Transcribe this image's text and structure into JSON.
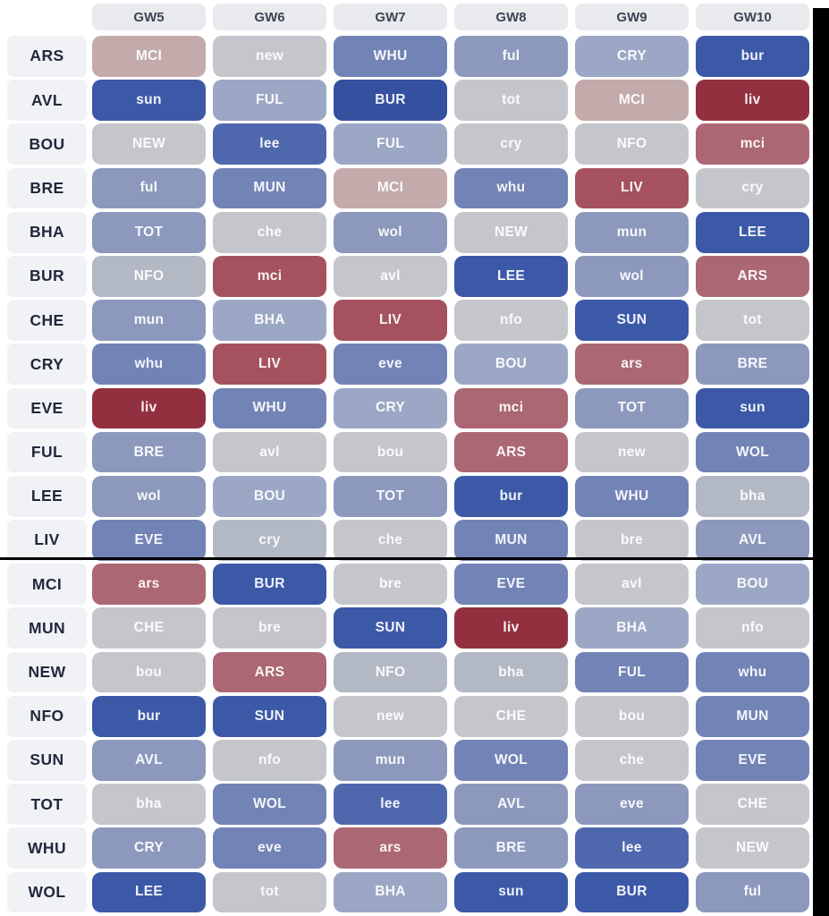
{
  "header": {
    "gameweeks": [
      "GW5",
      "GW6",
      "GW7",
      "GW8",
      "GW9",
      "GW10"
    ]
  },
  "palette": {
    "d1": "#34509e",
    "d2": "#3c59a8",
    "d3": "#4f68ad",
    "d4": "#7283b6",
    "d5": "#8c99bd",
    "d6": "#9ba7c4",
    "d7": "#b3b8c5",
    "d8": "#c4c6cb",
    "d9": "#c3aaab",
    "d10": "#ab6773",
    "d11": "#a5525e",
    "d12": "#93303f"
  },
  "rows": [
    {
      "team": "ARS",
      "fixtures": [
        {
          "opponent": "MCI",
          "level": "d9"
        },
        {
          "opponent": "new",
          "level": "d8"
        },
        {
          "opponent": "WHU",
          "level": "d4"
        },
        {
          "opponent": "ful",
          "level": "d5"
        },
        {
          "opponent": "CRY",
          "level": "d6"
        },
        {
          "opponent": "bur",
          "level": "d2"
        }
      ]
    },
    {
      "team": "AVL",
      "fixtures": [
        {
          "opponent": "sun",
          "level": "d2"
        },
        {
          "opponent": "FUL",
          "level": "d6"
        },
        {
          "opponent": "BUR",
          "level": "d1"
        },
        {
          "opponent": "tot",
          "level": "d8"
        },
        {
          "opponent": "MCI",
          "level": "d9"
        },
        {
          "opponent": "liv",
          "level": "d12"
        }
      ]
    },
    {
      "team": "BOU",
      "fixtures": [
        {
          "opponent": "NEW",
          "level": "d8"
        },
        {
          "opponent": "lee",
          "level": "d3"
        },
        {
          "opponent": "FUL",
          "level": "d6"
        },
        {
          "opponent": "cry",
          "level": "d8"
        },
        {
          "opponent": "NFO",
          "level": "d8"
        },
        {
          "opponent": "mci",
          "level": "d10"
        }
      ]
    },
    {
      "team": "BRE",
      "fixtures": [
        {
          "opponent": "ful",
          "level": "d5"
        },
        {
          "opponent": "MUN",
          "level": "d4"
        },
        {
          "opponent": "MCI",
          "level": "d9"
        },
        {
          "opponent": "whu",
          "level": "d4"
        },
        {
          "opponent": "LIV",
          "level": "d11"
        },
        {
          "opponent": "cry",
          "level": "d8"
        }
      ]
    },
    {
      "team": "BHA",
      "fixtures": [
        {
          "opponent": "TOT",
          "level": "d5"
        },
        {
          "opponent": "che",
          "level": "d8"
        },
        {
          "opponent": "wol",
          "level": "d5"
        },
        {
          "opponent": "NEW",
          "level": "d8"
        },
        {
          "opponent": "mun",
          "level": "d5"
        },
        {
          "opponent": "LEE",
          "level": "d2"
        }
      ]
    },
    {
      "team": "BUR",
      "fixtures": [
        {
          "opponent": "NFO",
          "level": "d7"
        },
        {
          "opponent": "mci",
          "level": "d11"
        },
        {
          "opponent": "avl",
          "level": "d8"
        },
        {
          "opponent": "LEE",
          "level": "d2"
        },
        {
          "opponent": "wol",
          "level": "d5"
        },
        {
          "opponent": "ARS",
          "level": "d10"
        }
      ]
    },
    {
      "team": "CHE",
      "fixtures": [
        {
          "opponent": "mun",
          "level": "d5"
        },
        {
          "opponent": "BHA",
          "level": "d6"
        },
        {
          "opponent": "LIV",
          "level": "d11"
        },
        {
          "opponent": "nfo",
          "level": "d8"
        },
        {
          "opponent": "SUN",
          "level": "d2"
        },
        {
          "opponent": "tot",
          "level": "d8"
        }
      ]
    },
    {
      "team": "CRY",
      "fixtures": [
        {
          "opponent": "whu",
          "level": "d4"
        },
        {
          "opponent": "LIV",
          "level": "d11"
        },
        {
          "opponent": "eve",
          "level": "d4"
        },
        {
          "opponent": "BOU",
          "level": "d6"
        },
        {
          "opponent": "ars",
          "level": "d10"
        },
        {
          "opponent": "BRE",
          "level": "d5"
        }
      ]
    },
    {
      "team": "EVE",
      "fixtures": [
        {
          "opponent": "liv",
          "level": "d12"
        },
        {
          "opponent": "WHU",
          "level": "d4"
        },
        {
          "opponent": "CRY",
          "level": "d6"
        },
        {
          "opponent": "mci",
          "level": "d10"
        },
        {
          "opponent": "TOT",
          "level": "d5"
        },
        {
          "opponent": "sun",
          "level": "d2"
        }
      ]
    },
    {
      "team": "FUL",
      "fixtures": [
        {
          "opponent": "BRE",
          "level": "d5"
        },
        {
          "opponent": "avl",
          "level": "d8"
        },
        {
          "opponent": "bou",
          "level": "d8"
        },
        {
          "opponent": "ARS",
          "level": "d10"
        },
        {
          "opponent": "new",
          "level": "d8"
        },
        {
          "opponent": "WOL",
          "level": "d4"
        }
      ]
    },
    {
      "team": "LEE",
      "fixtures": [
        {
          "opponent": "wol",
          "level": "d5"
        },
        {
          "opponent": "BOU",
          "level": "d6"
        },
        {
          "opponent": "TOT",
          "level": "d5"
        },
        {
          "opponent": "bur",
          "level": "d2"
        },
        {
          "opponent": "WHU",
          "level": "d4"
        },
        {
          "opponent": "bha",
          "level": "d7"
        }
      ]
    },
    {
      "team": "LIV",
      "fixtures": [
        {
          "opponent": "EVE",
          "level": "d4"
        },
        {
          "opponent": "cry",
          "level": "d7"
        },
        {
          "opponent": "che",
          "level": "d8"
        },
        {
          "opponent": "MUN",
          "level": "d4"
        },
        {
          "opponent": "bre",
          "level": "d8"
        },
        {
          "opponent": "AVL",
          "level": "d5"
        }
      ]
    },
    {
      "team": "MCI",
      "fixtures": [
        {
          "opponent": "ars",
          "level": "d10"
        },
        {
          "opponent": "BUR",
          "level": "d2"
        },
        {
          "opponent": "bre",
          "level": "d8"
        },
        {
          "opponent": "EVE",
          "level": "d4"
        },
        {
          "opponent": "avl",
          "level": "d8"
        },
        {
          "opponent": "BOU",
          "level": "d6"
        }
      ]
    },
    {
      "team": "MUN",
      "fixtures": [
        {
          "opponent": "CHE",
          "level": "d8"
        },
        {
          "opponent": "bre",
          "level": "d8"
        },
        {
          "opponent": "SUN",
          "level": "d2"
        },
        {
          "opponent": "liv",
          "level": "d12"
        },
        {
          "opponent": "BHA",
          "level": "d6"
        },
        {
          "opponent": "nfo",
          "level": "d8"
        }
      ]
    },
    {
      "team": "NEW",
      "fixtures": [
        {
          "opponent": "bou",
          "level": "d8"
        },
        {
          "opponent": "ARS",
          "level": "d10"
        },
        {
          "opponent": "NFO",
          "level": "d7"
        },
        {
          "opponent": "bha",
          "level": "d7"
        },
        {
          "opponent": "FUL",
          "level": "d4"
        },
        {
          "opponent": "whu",
          "level": "d4"
        }
      ]
    },
    {
      "team": "NFO",
      "fixtures": [
        {
          "opponent": "bur",
          "level": "d2"
        },
        {
          "opponent": "SUN",
          "level": "d2"
        },
        {
          "opponent": "new",
          "level": "d8"
        },
        {
          "opponent": "CHE",
          "level": "d8"
        },
        {
          "opponent": "bou",
          "level": "d8"
        },
        {
          "opponent": "MUN",
          "level": "d4"
        }
      ]
    },
    {
      "team": "SUN",
      "fixtures": [
        {
          "opponent": "AVL",
          "level": "d5"
        },
        {
          "opponent": "nfo",
          "level": "d8"
        },
        {
          "opponent": "mun",
          "level": "d5"
        },
        {
          "opponent": "WOL",
          "level": "d4"
        },
        {
          "opponent": "che",
          "level": "d8"
        },
        {
          "opponent": "EVE",
          "level": "d4"
        }
      ]
    },
    {
      "team": "TOT",
      "fixtures": [
        {
          "opponent": "bha",
          "level": "d8"
        },
        {
          "opponent": "WOL",
          "level": "d4"
        },
        {
          "opponent": "lee",
          "level": "d3"
        },
        {
          "opponent": "AVL",
          "level": "d5"
        },
        {
          "opponent": "eve",
          "level": "d5"
        },
        {
          "opponent": "CHE",
          "level": "d8"
        }
      ]
    },
    {
      "team": "WHU",
      "fixtures": [
        {
          "opponent": "CRY",
          "level": "d5"
        },
        {
          "opponent": "eve",
          "level": "d4"
        },
        {
          "opponent": "ars",
          "level": "d10"
        },
        {
          "opponent": "BRE",
          "level": "d5"
        },
        {
          "opponent": "lee",
          "level": "d3"
        },
        {
          "opponent": "NEW",
          "level": "d8"
        }
      ]
    },
    {
      "team": "WOL",
      "fixtures": [
        {
          "opponent": "LEE",
          "level": "d2"
        },
        {
          "opponent": "tot",
          "level": "d8"
        },
        {
          "opponent": "BHA",
          "level": "d6"
        },
        {
          "opponent": "sun",
          "level": "d2"
        },
        {
          "opponent": "BUR",
          "level": "d2"
        },
        {
          "opponent": "ful",
          "level": "d5"
        }
      ]
    }
  ],
  "divider_after_row": "LIV"
}
